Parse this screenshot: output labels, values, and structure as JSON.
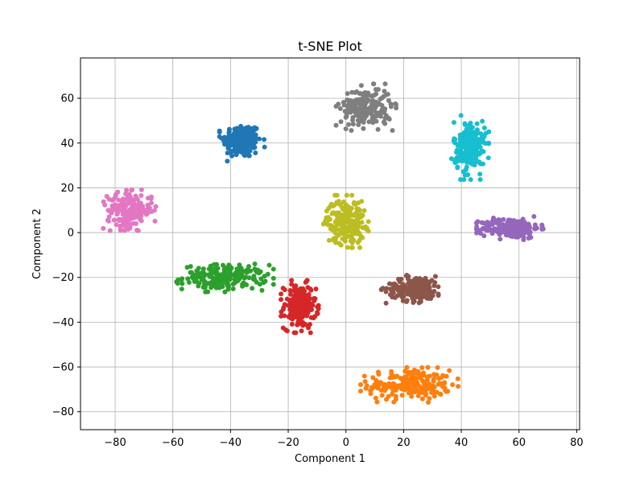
{
  "chart_data": {
    "type": "scatter",
    "title": "t-SNE Plot",
    "xlabel": "Component 1",
    "ylabel": "Component 2",
    "xlim": [
      -92,
      81
    ],
    "ylim": [
      -88,
      78
    ],
    "x_ticks": [
      -80,
      -60,
      -40,
      -20,
      0,
      20,
      40,
      60,
      80
    ],
    "y_ticks": [
      -80,
      -60,
      -40,
      -20,
      0,
      20,
      40,
      60
    ],
    "x_tick_labels": [
      "−80",
      "−60",
      "−40",
      "−20",
      "0",
      "20",
      "40",
      "60",
      "80"
    ],
    "y_tick_labels": [
      "−80",
      "−60",
      "−40",
      "−20",
      "0",
      "20",
      "40",
      "60"
    ],
    "grid": true,
    "legend": false,
    "palette": [
      "#1f77b4",
      "#ff7f0e",
      "#2ca02c",
      "#d62728",
      "#9467bd",
      "#8c564b",
      "#e377c2",
      "#7f7f7f",
      "#bcbd22",
      "#17becf"
    ],
    "clusters": [
      {
        "color": "#1f77b4",
        "center": [
          -36,
          41
        ],
        "spread": [
          6,
          7
        ],
        "count": 190
      },
      {
        "color": "#ff7f0e",
        "center": [
          22,
          -68
        ],
        "spread": [
          13,
          6
        ],
        "count": 210
      },
      {
        "color": "#2ca02c",
        "center": [
          -42,
          -20
        ],
        "spread": [
          13,
          5
        ],
        "count": 210
      },
      {
        "color": "#d62728",
        "center": [
          -16,
          -33
        ],
        "spread": [
          5,
          9
        ],
        "count": 200
      },
      {
        "color": "#9467bd",
        "center": [
          57,
          2
        ],
        "spread": [
          9,
          4
        ],
        "count": 210
      },
      {
        "color": "#8c564b",
        "center": [
          24,
          -25
        ],
        "spread": [
          9,
          5
        ],
        "count": 200
      },
      {
        "color": "#e377c2",
        "center": [
          -75,
          10
        ],
        "spread": [
          7,
          7
        ],
        "count": 190
      },
      {
        "color": "#7f7f7f",
        "center": [
          7,
          56
        ],
        "spread": [
          8,
          8
        ],
        "count": 200
      },
      {
        "color": "#bcbd22",
        "center": [
          0,
          5
        ],
        "spread": [
          6,
          9
        ],
        "count": 210
      },
      {
        "color": "#17becf",
        "center": [
          43,
          38
        ],
        "spread": [
          5,
          11
        ],
        "count": 210
      }
    ]
  }
}
